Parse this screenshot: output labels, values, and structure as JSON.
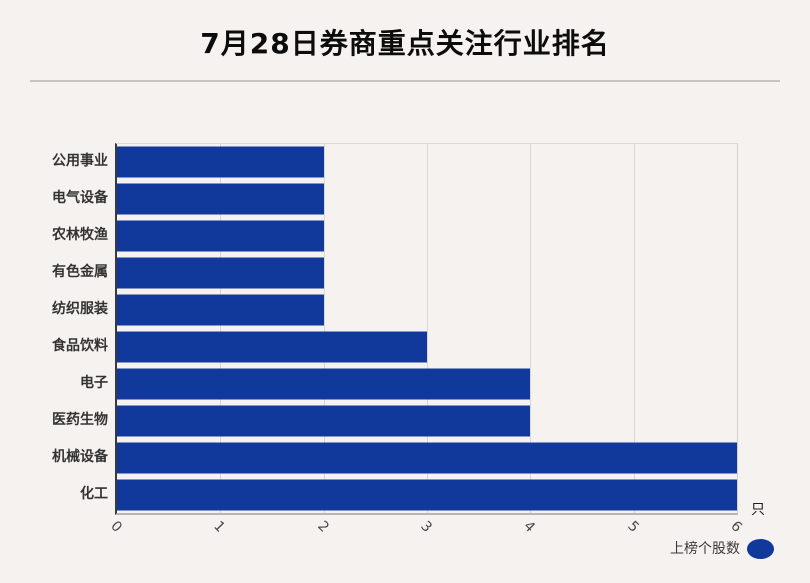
{
  "title": "7月28日券商重点关注行业排名",
  "unit_label": "只",
  "legend": {
    "label": "上榜个股数"
  },
  "colors": {
    "bar": "#11399b",
    "background": "#f6f2f0",
    "grid": "#d9d7d5",
    "axis_dark": "#3a3a3a",
    "title_text": "#0c0c0c",
    "category_text": "#333333",
    "tick_text": "#4a4a4a"
  },
  "chart_data": {
    "type": "bar",
    "orientation": "horizontal",
    "title": "7月28日券商重点关注行业排名",
    "categories": [
      "公用事业",
      "电气设备",
      "农林牧渔",
      "有色金属",
      "纺织服装",
      "食品饮料",
      "电子",
      "医药生物",
      "机械设备",
      "化工"
    ],
    "values": [
      2,
      2,
      2,
      2,
      2,
      3,
      4,
      4,
      6,
      6
    ],
    "series_name": "上榜个股数",
    "xlabel": "只",
    "ylabel": "",
    "xlim": [
      0,
      6
    ],
    "xticks": [
      0,
      1,
      2,
      3,
      4,
      5,
      6
    ],
    "xtick_rotation_deg": 45,
    "grid": true,
    "legend_position": "bottom-right"
  }
}
